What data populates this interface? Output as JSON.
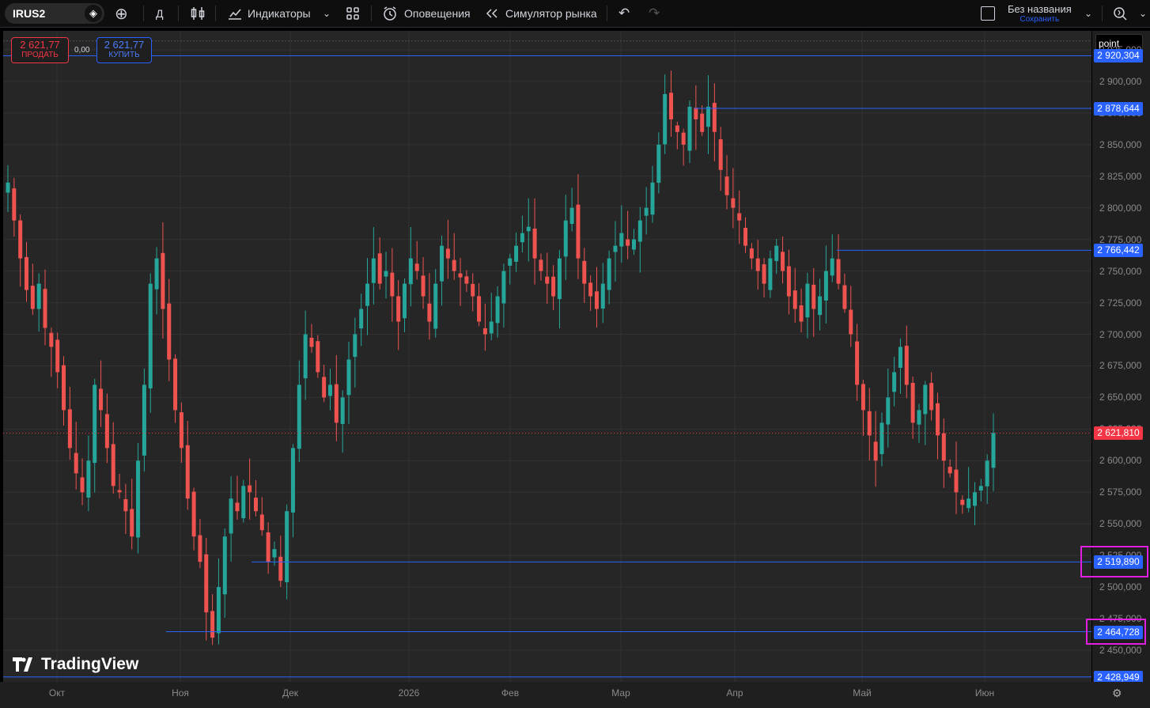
{
  "toolbar": {
    "symbol": "IRUS2",
    "interval": "Д",
    "indicators_label": "Индикаторы",
    "alerts_label": "Оповещения",
    "replay_label": "Симулятор рынка",
    "layout_name": "Без названия",
    "layout_save": "Сохранить"
  },
  "trade": {
    "sell_price": "2 621,77",
    "sell_label": "ПРОДАТЬ",
    "spread": "0,00",
    "buy_price": "2 621,77",
    "buy_label": "КУПИТЬ"
  },
  "price_scale": {
    "mode_label": "point",
    "ticks": [
      "2 925,000",
      "2 900,000",
      "2 875,000",
      "2 850,000",
      "2 825,000",
      "2 800,000",
      "2 775,000",
      "2 750,000",
      "2 725,000",
      "2 700,000",
      "2 675,000",
      "2 650,000",
      "2 625,000",
      "2 600,000",
      "2 575,000",
      "2 550,000",
      "2 525,000",
      "2 500,000",
      "2 475,000",
      "2 450,000"
    ],
    "tick_values": [
      2925,
      2900,
      2875,
      2850,
      2825,
      2800,
      2775,
      2750,
      2725,
      2700,
      2675,
      2650,
      2625,
      2600,
      2575,
      2550,
      2525,
      2500,
      2475,
      2450
    ],
    "current_price": "2 621,810",
    "current_price_value": 2621.81,
    "level_labels": [
      "2 920,304",
      "2 878,644",
      "2 766,442",
      "2 519,890",
      "2 464,728",
      "2 428,949"
    ],
    "level_values": [
      2920.304,
      2878.644,
      2766.442,
      2519.89,
      2464.728,
      2428.949
    ],
    "highlighted_levels": [
      "2 519,890",
      "2 464,728"
    ]
  },
  "time_scale": {
    "labels": [
      "Окт",
      "Ноя",
      "Дек",
      "2026",
      "Фев",
      "Мар",
      "Апр",
      "Май",
      "Июн"
    ]
  },
  "watermark": "TradingView",
  "colors": {
    "up": "#26a69a",
    "down": "#ef5350",
    "level_line": "#2962ff",
    "highlight": "#e020e0",
    "current_price": "#f23645"
  },
  "chart_data": {
    "type": "candlestick",
    "y_range": [
      2425,
      2940
    ],
    "close_path": [
      2820,
      2790,
      2760,
      2735,
      2720,
      2740,
      2705,
      2690,
      2670,
      2640,
      2610,
      2590,
      2575,
      2600,
      2660,
      2640,
      2610,
      2580,
      2575,
      2560,
      2540,
      2600,
      2660,
      2740,
      2760,
      2720,
      2680,
      2640,
      2610,
      2570,
      2540,
      2520,
      2480,
      2460,
      2500,
      2540,
      2570,
      2560,
      2580,
      2575,
      2560,
      2545,
      2520,
      2530,
      2505,
      2560,
      2610,
      2660,
      2700,
      2690,
      2670,
      2650,
      2660,
      2630,
      2650,
      2680,
      2700,
      2720,
      2740,
      2760,
      2740,
      2750,
      2730,
      2710,
      2740,
      2760,
      2750,
      2730,
      2710,
      2740,
      2770,
      2760,
      2750,
      2745,
      2740,
      2730,
      2710,
      2700,
      2710,
      2730,
      2750,
      2760,
      2770,
      2780,
      2785,
      2760,
      2750,
      2740,
      2730,
      2760,
      2790,
      2800,
      2760,
      2740,
      2730,
      2720,
      2740,
      2760,
      2770,
      2780,
      2770,
      2775,
      2790,
      2800,
      2820,
      2850,
      2890,
      2870,
      2860,
      2850,
      2880,
      2870,
      2860,
      2880,
      2860,
      2830,
      2810,
      2800,
      2790,
      2770,
      2760,
      2750,
      2740,
      2760,
      2770,
      2750,
      2730,
      2720,
      2710,
      2740,
      2720,
      2730,
      2750,
      2760,
      2740,
      2720,
      2700,
      2660,
      2640,
      2620,
      2600,
      2630,
      2650,
      2670,
      2690,
      2660,
      2630,
      2640,
      2660,
      2640,
      2620,
      2600,
      2590,
      2575,
      2565,
      2570,
      2575,
      2580,
      2600,
      2622
    ]
  }
}
